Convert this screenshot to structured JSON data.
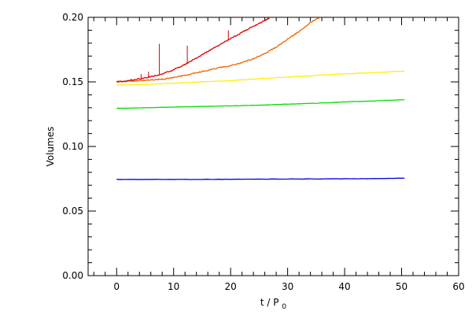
{
  "chart_data": {
    "type": "line",
    "title": "",
    "xlabel": "t / P",
    "xlabel_subscript": "0",
    "ylabel": "Volumes",
    "xlim": [
      -5,
      60
    ],
    "ylim": [
      0.0,
      0.2
    ],
    "x_major_ticks": [
      0,
      10,
      20,
      30,
      40,
      50,
      60
    ],
    "x_tick_labels": [
      "0",
      "10",
      "20",
      "30",
      "40",
      "50",
      "60"
    ],
    "x_minor_step": 2,
    "y_major_ticks": [
      0.0,
      0.05,
      0.1,
      0.15,
      0.2
    ],
    "y_tick_labels": [
      "0.00",
      "0.05",
      "0.10",
      "0.15",
      "0.20"
    ],
    "y_minor_step": 0.01,
    "grid": false,
    "legend": "none",
    "series": [
      {
        "color": "#0000dd",
        "x": [
          0,
          10,
          20,
          30,
          40,
          45,
          47,
          49,
          50.5
        ],
        "y": [
          0.0745,
          0.0745,
          0.0746,
          0.0748,
          0.075,
          0.0751,
          0.0752,
          0.0754,
          0.0755
        ]
      },
      {
        "color": "#00dd00",
        "x": [
          0,
          5,
          10,
          15,
          20,
          25,
          30,
          35,
          40,
          45,
          50.5
        ],
        "y": [
          0.1295,
          0.13,
          0.1305,
          0.131,
          0.1315,
          0.132,
          0.1328,
          0.1335,
          0.1345,
          0.1352,
          0.1362
        ]
      },
      {
        "color": "#ffee00",
        "x": [
          0,
          5,
          10,
          15,
          20,
          25,
          30,
          35,
          40,
          45,
          50.5
        ],
        "y": [
          0.1475,
          0.148,
          0.149,
          0.15,
          0.151,
          0.1525,
          0.1537,
          0.155,
          0.1562,
          0.1572,
          0.1585
        ]
      },
      {
        "color": "#ee6600",
        "x": [
          0,
          2,
          4,
          6,
          8,
          10,
          12,
          14,
          16,
          18,
          20,
          22,
          24,
          26,
          28,
          30,
          32,
          34,
          35.7
        ],
        "y": [
          0.15,
          0.1505,
          0.151,
          0.1515,
          0.152,
          0.1535,
          0.155,
          0.157,
          0.159,
          0.161,
          0.1625,
          0.165,
          0.168,
          0.172,
          0.177,
          0.183,
          0.189,
          0.196,
          0.2
        ]
      },
      {
        "color": "#dd0000",
        "x": [
          0,
          2,
          4,
          6,
          8,
          10,
          12,
          14,
          16,
          18,
          20,
          22,
          24,
          26,
          27
        ],
        "y": [
          0.15,
          0.151,
          0.1525,
          0.154,
          0.156,
          0.1595,
          0.1635,
          0.1685,
          0.1735,
          0.1785,
          0.1835,
          0.1885,
          0.193,
          0.1975,
          0.2
        ]
      }
    ],
    "spikes": [
      {
        "color": "#dd0000",
        "x": 7.5,
        "y_from": 0.156,
        "y_to": 0.1795
      },
      {
        "color": "#dd0000",
        "x": 12.4,
        "y_from": 0.164,
        "y_to": 0.178
      },
      {
        "color": "#dd0000",
        "x": 19.6,
        "y_from": 0.182,
        "y_to": 0.19
      },
      {
        "color": "#dd0000",
        "x": 4.3,
        "y_from": 0.152,
        "y_to": 0.156
      },
      {
        "color": "#dd0000",
        "x": 5.6,
        "y_from": 0.153,
        "y_to": 0.158
      }
    ]
  }
}
